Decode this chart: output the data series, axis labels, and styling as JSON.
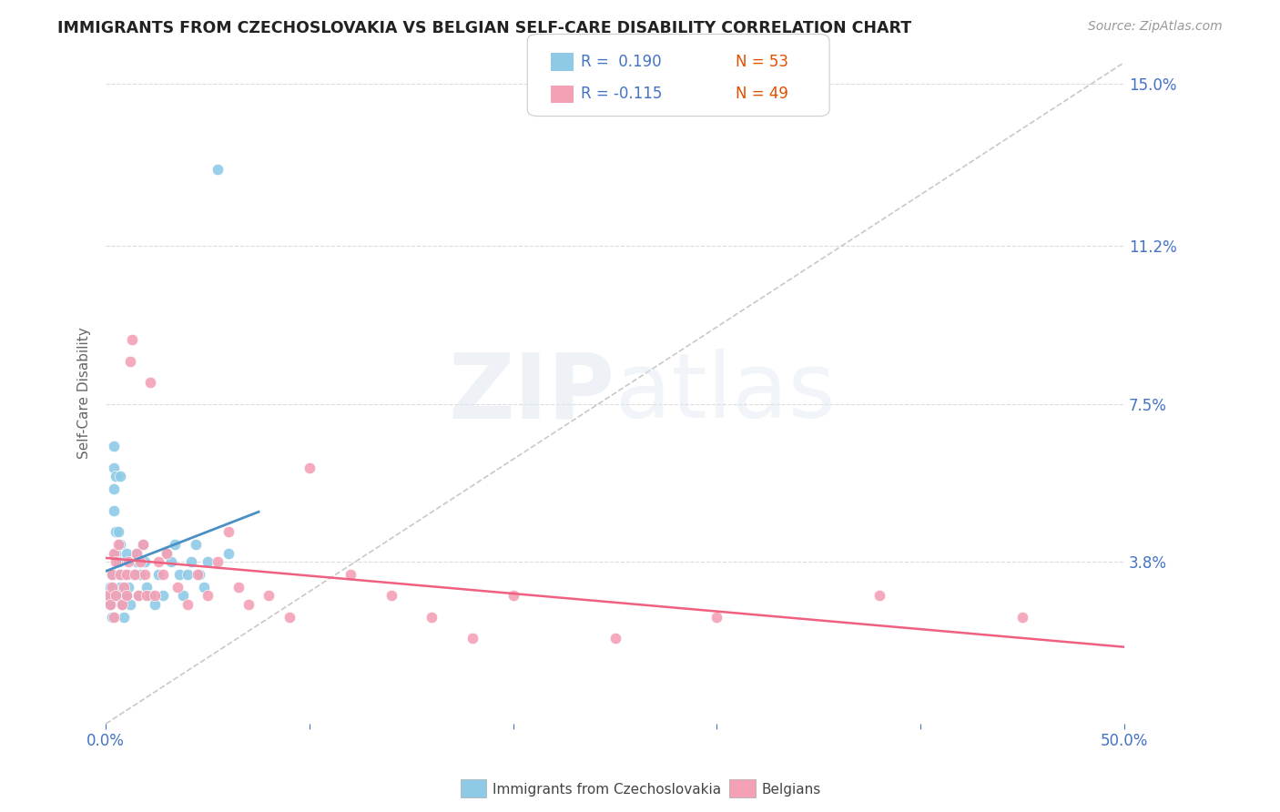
{
  "title": "IMMIGRANTS FROM CZECHOSLOVAKIA VS BELGIAN SELF-CARE DISABILITY CORRELATION CHART",
  "source_text": "Source: ZipAtlas.com",
  "ylabel": "Self-Care Disability",
  "watermark_zip": "ZIP",
  "watermark_atlas": "atlas",
  "xmin": 0.0,
  "xmax": 0.5,
  "ymin": 0.0,
  "ymax": 0.155,
  "yticks": [
    0.0,
    0.038,
    0.075,
    0.112,
    0.15
  ],
  "ytick_labels": [
    "",
    "3.8%",
    "7.5%",
    "11.2%",
    "15.0%"
  ],
  "xticks": [
    0.0,
    0.1,
    0.2,
    0.3,
    0.4,
    0.5
  ],
  "xtick_labels": [
    "0.0%",
    "",
    "",
    "",
    "",
    "50.0%"
  ],
  "blue_color": "#8ecae6",
  "pink_color": "#f4a0b5",
  "blue_line_color": "#4a90c4",
  "pink_line_color": "#f06080",
  "diag_color": "#bbbbbb",
  "grid_color": "#cccccc",
  "axis_color": "#4472c4",
  "legend_R1": "R =  0.190",
  "legend_N1": "N = 53",
  "legend_R2": "R = -0.115",
  "legend_N2": "N = 49",
  "N_color": "#e05000",
  "blue_scatter_x": [
    0.001,
    0.002,
    0.002,
    0.003,
    0.003,
    0.003,
    0.004,
    0.004,
    0.004,
    0.004,
    0.005,
    0.005,
    0.005,
    0.006,
    0.006,
    0.006,
    0.007,
    0.007,
    0.007,
    0.008,
    0.008,
    0.009,
    0.009,
    0.01,
    0.01,
    0.011,
    0.012,
    0.013,
    0.014,
    0.015,
    0.015,
    0.016,
    0.017,
    0.018,
    0.019,
    0.02,
    0.022,
    0.024,
    0.026,
    0.028,
    0.03,
    0.032,
    0.034,
    0.036,
    0.038,
    0.04,
    0.042,
    0.044,
    0.046,
    0.048,
    0.05,
    0.055,
    0.06
  ],
  "blue_scatter_y": [
    0.03,
    0.028,
    0.032,
    0.025,
    0.035,
    0.03,
    0.06,
    0.055,
    0.065,
    0.05,
    0.045,
    0.058,
    0.04,
    0.035,
    0.045,
    0.038,
    0.042,
    0.032,
    0.058,
    0.028,
    0.03,
    0.025,
    0.035,
    0.03,
    0.04,
    0.032,
    0.028,
    0.035,
    0.035,
    0.038,
    0.04,
    0.03,
    0.035,
    0.042,
    0.038,
    0.032,
    0.03,
    0.028,
    0.035,
    0.03,
    0.04,
    0.038,
    0.042,
    0.035,
    0.03,
    0.035,
    0.038,
    0.042,
    0.035,
    0.032,
    0.038,
    0.13,
    0.04
  ],
  "pink_scatter_x": [
    0.001,
    0.002,
    0.003,
    0.003,
    0.004,
    0.004,
    0.005,
    0.005,
    0.006,
    0.007,
    0.008,
    0.009,
    0.01,
    0.01,
    0.011,
    0.012,
    0.013,
    0.014,
    0.015,
    0.016,
    0.017,
    0.018,
    0.019,
    0.02,
    0.022,
    0.024,
    0.026,
    0.028,
    0.03,
    0.035,
    0.04,
    0.045,
    0.05,
    0.055,
    0.06,
    0.065,
    0.07,
    0.08,
    0.09,
    0.1,
    0.12,
    0.14,
    0.16,
    0.18,
    0.2,
    0.25,
    0.3,
    0.38,
    0.45
  ],
  "pink_scatter_y": [
    0.03,
    0.028,
    0.032,
    0.035,
    0.025,
    0.04,
    0.03,
    0.038,
    0.042,
    0.035,
    0.028,
    0.032,
    0.03,
    0.035,
    0.038,
    0.085,
    0.09,
    0.035,
    0.04,
    0.03,
    0.038,
    0.042,
    0.035,
    0.03,
    0.08,
    0.03,
    0.038,
    0.035,
    0.04,
    0.032,
    0.028,
    0.035,
    0.03,
    0.038,
    0.045,
    0.032,
    0.028,
    0.03,
    0.025,
    0.06,
    0.035,
    0.03,
    0.025,
    0.02,
    0.03,
    0.02,
    0.025,
    0.03,
    0.025
  ]
}
